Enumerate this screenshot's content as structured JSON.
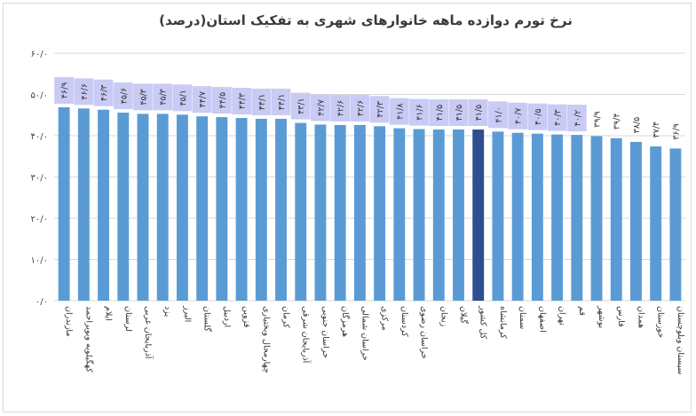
{
  "chart_data": {
    "type": "bar",
    "title": "نرخ تورم دوازده ماهه خانوارهای شهری به تفکیک استان(درصد)",
    "xlabel": "",
    "ylabel": "",
    "ylim": [
      0,
      60
    ],
    "yticks": [
      0,
      10,
      20,
      30,
      40,
      50,
      60
    ],
    "ytick_labels": [
      "۰/۰",
      "۱۰/۰",
      "۲۰/۰",
      "۳۰/۰",
      "۴۰/۰",
      "۵۰/۰",
      "۶۰/۰"
    ],
    "grid": true,
    "legend": "none",
    "colors": {
      "bar": "#5b9bd5",
      "highlight": "#2e4e8f",
      "label_bg": "#c9cbf5",
      "grid": "#d9d9d9"
    },
    "highlight_category": "کل کشور",
    "categories": [
      "مازندران",
      "کهگیلویه وبویراحمد",
      "ایلام",
      "لرستان",
      "آذربایجان غربی",
      "یزد",
      "البرز",
      "گلستان",
      "اردبیل",
      "قزوین",
      "چهارمحال وبختیاری",
      "کرمان",
      "آذربایجان شرقی",
      "خراسان جنوبی",
      "هرمزگان",
      "خراسان شمالی",
      "مرکزی",
      "کردستان",
      "خراسان رضوی",
      "زنجان",
      "گیلان",
      "کل کشور",
      "کرمانشاه",
      "سمنان",
      "اصفهان",
      "تهران",
      "قم",
      "بوشهر",
      "فارس",
      "همدان",
      "خوزستان",
      "سیستان وبلوچستان"
    ],
    "values": [
      46.9,
      46.6,
      46.3,
      45.6,
      45.3,
      45.3,
      45.1,
      44.7,
      44.5,
      44.3,
      44.1,
      44.1,
      43.1,
      42.7,
      42.6,
      42.6,
      42.3,
      41.8,
      41.6,
      41.5,
      41.5,
      41.5,
      41.0,
      40.7,
      40.5,
      40.3,
      40.2,
      39.9,
      39.4,
      38.5,
      37.4,
      36.9
    ],
    "value_labels": [
      "۴۶/۹",
      "۴۶/۶",
      "۴۶/۳",
      "۴۵/۶",
      "۴۵/۳",
      "۴۵/۳",
      "۴۵/۱",
      "۴۴/۷",
      "۴۴/۵",
      "۴۴/۳",
      "۴۴/۱",
      "۴۴/۱",
      "۴۳/۱",
      "۴۲/۷",
      "۴۲/۶",
      "۴۲/۶",
      "۴۲/۳",
      "۴۱/۸",
      "۴۱/۶",
      "۴۱/۵",
      "۴۱/۵",
      "۴۱/۵",
      "۴۱/۰",
      "۴۰/۷",
      "۴۰/۵",
      "۴۰/۳",
      "۴۰/۲",
      "۳۹/۹",
      "۳۹/۴",
      "۳۸/۵",
      "۳۷/۴",
      "۳۶/۹"
    ]
  }
}
